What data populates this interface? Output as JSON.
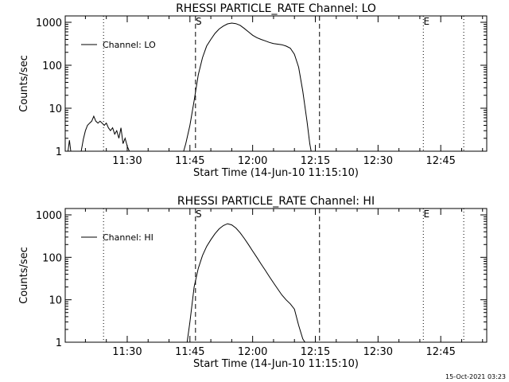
{
  "footer": {
    "timestamp": "15-Oct-2021 03:23"
  },
  "chart_data": [
    {
      "type": "line",
      "title": "RHESSI PARTICLE_RATE Channel: LO",
      "xlabel": "Start Time (14-Jun-10 11:15:10)",
      "ylabel": "Counts/sec",
      "yscale": "log",
      "ylim": [
        1,
        1000
      ],
      "xlim": [
        "11:15:10",
        "12:56:00"
      ],
      "y_ticks": [
        "1",
        "10",
        "100",
        "1000"
      ],
      "x_ticks": [
        "11:30",
        "11:45",
        "12:00",
        "12:15",
        "12:30",
        "12:45"
      ],
      "legend": {
        "position": "top-left",
        "entries": [
          "Channel: LO"
        ]
      },
      "markers": [
        {
          "label": "",
          "time": "11:15:10",
          "style": "dotted"
        },
        {
          "label": "",
          "time": "11:24:20",
          "style": "dotted"
        },
        {
          "label": "S",
          "time": "11:46:20",
          "style": "dashed"
        },
        {
          "label": "",
          "time": "12:16:00",
          "style": "dashed"
        },
        {
          "label": "E",
          "time": "12:40:50",
          "style": "dotted"
        },
        {
          "label": "",
          "time": "12:50:30",
          "style": "dotted"
        }
      ],
      "series": [
        {
          "name": "Channel: LO",
          "segments": [
            [
              [
                "11:15:50",
                1
              ],
              [
                "11:16:10",
                1.8
              ],
              [
                "11:16:30",
                1
              ]
            ],
            [
              [
                "11:19:00",
                1
              ],
              [
                "11:19:30",
                1.9
              ],
              [
                "11:20:00",
                3.0
              ],
              [
                "11:20:30",
                4.0
              ],
              [
                "11:21:00",
                4.5
              ],
              [
                "11:21:30",
                5.0
              ],
              [
                "11:22:00",
                6.5
              ],
              [
                "11:22:30",
                5.0
              ],
              [
                "11:23:00",
                4.5
              ],
              [
                "11:23:30",
                5.0
              ],
              [
                "11:24:00",
                4.5
              ],
              [
                "11:24:30",
                4.0
              ],
              [
                "11:25:00",
                4.5
              ],
              [
                "11:25:30",
                3.5
              ],
              [
                "11:26:00",
                3.0
              ],
              [
                "11:26:30",
                3.5
              ],
              [
                "11:27:00",
                2.5
              ],
              [
                "11:27:30",
                3.0
              ],
              [
                "11:28:00",
                2.0
              ],
              [
                "11:28:30",
                3.5
              ],
              [
                "11:29:00",
                1.5
              ],
              [
                "11:29:30",
                2.0
              ],
              [
                "11:30:00",
                1.3
              ],
              [
                "11:30:30",
                1
              ]
            ],
            [
              [
                "11:43:30",
                1
              ],
              [
                "11:44:00",
                1.5
              ],
              [
                "11:45:00",
                4.0
              ],
              [
                "11:46:00",
                15
              ],
              [
                "11:47:00",
                60
              ],
              [
                "11:48:00",
                150
              ],
              [
                "11:49:00",
                280
              ],
              [
                "11:50:00",
                400
              ],
              [
                "11:51:00",
                550
              ],
              [
                "11:52:00",
                700
              ],
              [
                "11:53:00",
                820
              ],
              [
                "11:54:00",
                920
              ],
              [
                "11:55:00",
                960
              ],
              [
                "11:56:00",
                930
              ],
              [
                "11:57:00",
                850
              ],
              [
                "11:58:00",
                720
              ],
              [
                "11:59:00",
                600
              ],
              [
                "12:00:00",
                500
              ],
              [
                "12:01:00",
                440
              ],
              [
                "12:02:00",
                400
              ],
              [
                "12:03:00",
                370
              ],
              [
                "12:04:00",
                340
              ],
              [
                "12:05:00",
                320
              ],
              [
                "12:06:00",
                310
              ],
              [
                "12:07:00",
                300
              ],
              [
                "12:08:00",
                280
              ],
              [
                "12:09:00",
                250
              ],
              [
                "12:10:00",
                180
              ],
              [
                "12:11:00",
                90
              ],
              [
                "12:12:00",
                25
              ],
              [
                "12:13:00",
                5.0
              ],
              [
                "12:13:40",
                1.5
              ],
              [
                "12:14:00",
                1
              ]
            ]
          ]
        }
      ]
    },
    {
      "type": "line",
      "title": "RHESSI PARTICLE_RATE Channel: HI",
      "xlabel": "Start Time (14-Jun-10 11:15:10)",
      "ylabel": "Counts/sec",
      "yscale": "log",
      "ylim": [
        1,
        1000
      ],
      "xlim": [
        "11:15:10",
        "12:56:00"
      ],
      "y_ticks": [
        "1",
        "10",
        "100",
        "1000"
      ],
      "x_ticks": [
        "11:30",
        "11:45",
        "12:00",
        "12:15",
        "12:30",
        "12:45"
      ],
      "legend": {
        "position": "top-left",
        "entries": [
          "Channel: HI"
        ]
      },
      "markers": [
        {
          "label": "",
          "time": "11:15:10",
          "style": "dotted"
        },
        {
          "label": "",
          "time": "11:24:20",
          "style": "dotted"
        },
        {
          "label": "S",
          "time": "11:46:20",
          "style": "dashed"
        },
        {
          "label": "",
          "time": "12:16:00",
          "style": "dashed"
        },
        {
          "label": "E",
          "time": "12:40:50",
          "style": "dotted"
        },
        {
          "label": "",
          "time": "12:50:30",
          "style": "dotted"
        }
      ],
      "series": [
        {
          "name": "Channel: HI",
          "segments": [
            [
              [
                "11:44:20",
                1
              ],
              [
                "11:45:00",
                3.0
              ],
              [
                "11:46:00",
                20
              ],
              [
                "11:47:00",
                55
              ],
              [
                "11:48:00",
                110
              ],
              [
                "11:49:00",
                180
              ],
              [
                "11:50:00",
                260
              ],
              [
                "11:51:00",
                360
              ],
              [
                "11:52:00",
                470
              ],
              [
                "11:53:00",
                560
              ],
              [
                "11:54:00",
                620
              ],
              [
                "11:55:00",
                580
              ],
              [
                "11:56:00",
                490
              ],
              [
                "11:57:00",
                380
              ],
              [
                "11:58:00",
                280
              ],
              [
                "11:59:00",
                200
              ],
              [
                "12:00:00",
                140
              ],
              [
                "12:01:00",
                100
              ],
              [
                "12:02:00",
                70
              ],
              [
                "12:03:00",
                50
              ],
              [
                "12:04:00",
                35
              ],
              [
                "12:05:00",
                25
              ],
              [
                "12:06:00",
                18
              ],
              [
                "12:07:00",
                13
              ],
              [
                "12:08:00",
                10
              ],
              [
                "12:09:00",
                8.0
              ],
              [
                "12:10:00",
                6.0
              ],
              [
                "12:11:00",
                2.5
              ],
              [
                "12:12:00",
                1.2
              ],
              [
                "12:12:30",
                1
              ]
            ]
          ]
        }
      ]
    }
  ]
}
